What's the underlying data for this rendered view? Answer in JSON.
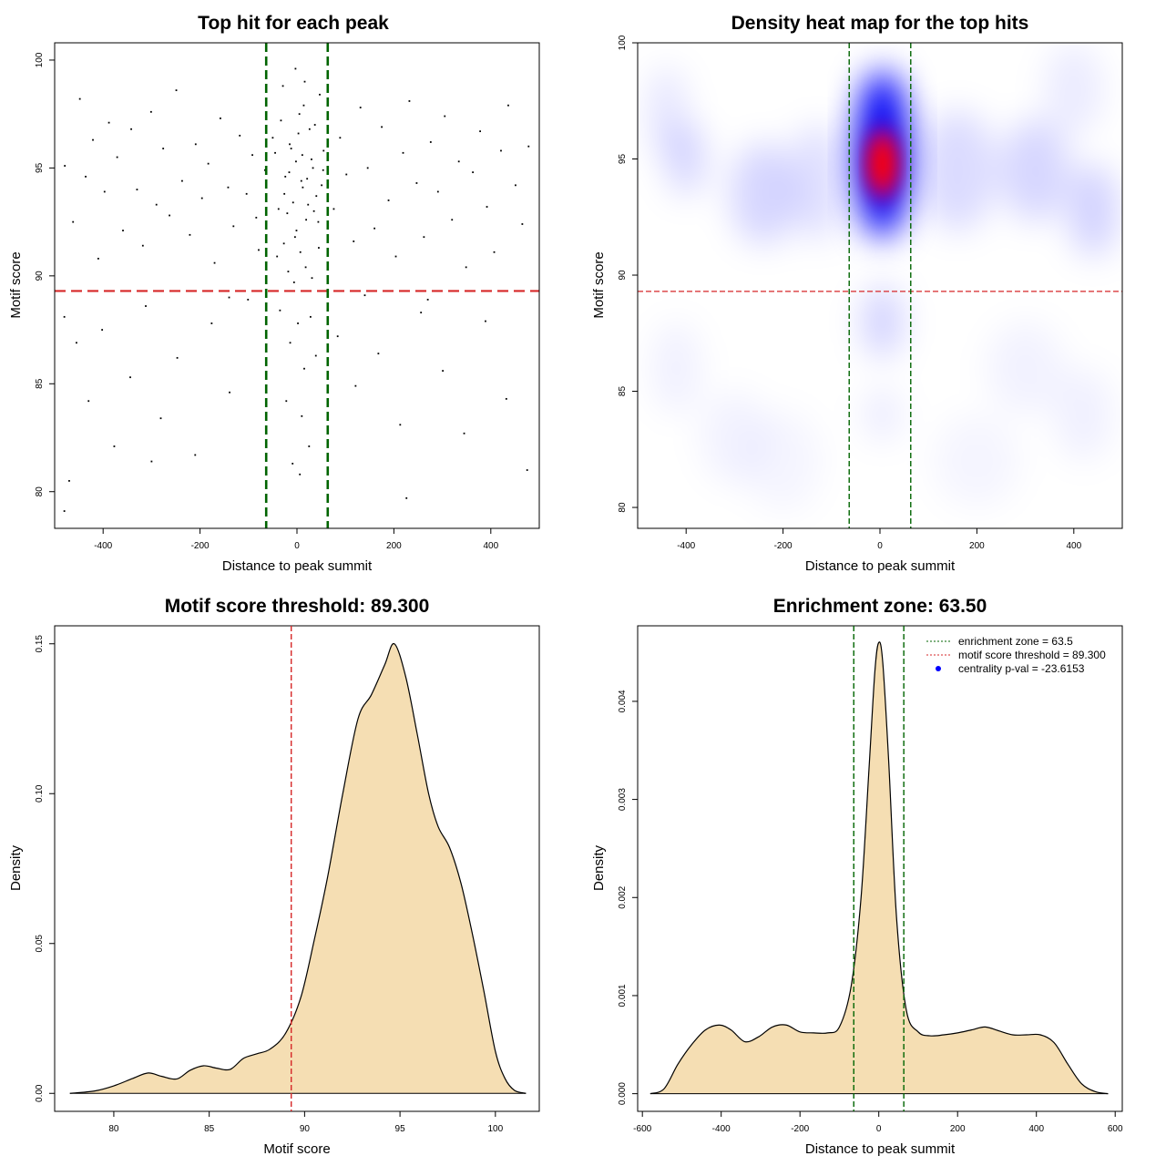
{
  "colors": {
    "threshold_line": "#d62728",
    "zone_line": "#006400",
    "density_fill": "#f5deb3",
    "points": "#000000",
    "heat_low": "#ffffff",
    "heat_mid": "#0000ff",
    "heat_high": "#ff0000"
  },
  "chart_data": [
    {
      "type": "scatter",
      "title": "Top hit for each peak",
      "xlabel": "Distance to peak summit",
      "ylabel": "Motif score",
      "xlim": [
        -500,
        500
      ],
      "ylim": [
        78.3,
        100.8
      ],
      "xticks": [
        -400,
        -200,
        0,
        200,
        400
      ],
      "yticks": [
        80,
        85,
        90,
        95,
        100
      ],
      "grid": false,
      "hlines": [
        89.3
      ],
      "vlines": [
        -63.5,
        63.5
      ],
      "points": [
        [
          -479,
          95.1
        ],
        [
          -462,
          92.5
        ],
        [
          -448,
          98.2
        ],
        [
          -436,
          94.6
        ],
        [
          -421,
          96.3
        ],
        [
          -410,
          90.8
        ],
        [
          -397,
          93.9
        ],
        [
          -388,
          97.1
        ],
        [
          -371,
          95.5
        ],
        [
          -359,
          92.1
        ],
        [
          -342,
          96.8
        ],
        [
          -330,
          94.0
        ],
        [
          -318,
          91.4
        ],
        [
          -301,
          97.6
        ],
        [
          -290,
          93.3
        ],
        [
          -276,
          95.9
        ],
        [
          -263,
          92.8
        ],
        [
          -249,
          98.6
        ],
        [
          -237,
          94.4
        ],
        [
          -221,
          91.9
        ],
        [
          -209,
          96.1
        ],
        [
          -196,
          93.6
        ],
        [
          -183,
          95.2
        ],
        [
          -170,
          90.6
        ],
        [
          -158,
          97.3
        ],
        [
          -142,
          94.1
        ],
        [
          -131,
          92.3
        ],
        [
          -118,
          96.5
        ],
        [
          -104,
          93.8
        ],
        [
          -92,
          95.6
        ],
        [
          -79,
          91.2
        ],
        [
          -66,
          94.9
        ],
        [
          -480,
          88.1
        ],
        [
          -455,
          86.9
        ],
        [
          -430,
          84.2
        ],
        [
          -402,
          87.5
        ],
        [
          -377,
          82.1
        ],
        [
          -344,
          85.3
        ],
        [
          -312,
          88.6
        ],
        [
          -281,
          83.4
        ],
        [
          -247,
          86.2
        ],
        [
          -210,
          81.7
        ],
        [
          -176,
          87.8
        ],
        [
          -139,
          84.6
        ],
        [
          -101,
          88.9
        ],
        [
          -470,
          80.5
        ],
        [
          -300,
          81.4
        ],
        [
          -480,
          79.1
        ],
        [
          -140,
          89.0
        ],
        [
          -84,
          92.7
        ],
        [
          76,
          93.1
        ],
        [
          89,
          96.4
        ],
        [
          102,
          94.7
        ],
        [
          117,
          91.6
        ],
        [
          131,
          97.8
        ],
        [
          146,
          95.0
        ],
        [
          160,
          92.2
        ],
        [
          175,
          96.9
        ],
        [
          189,
          93.5
        ],
        [
          204,
          90.9
        ],
        [
          219,
          95.7
        ],
        [
          232,
          98.1
        ],
        [
          247,
          94.3
        ],
        [
          262,
          91.8
        ],
        [
          276,
          96.2
        ],
        [
          291,
          93.9
        ],
        [
          305,
          97.4
        ],
        [
          320,
          92.6
        ],
        [
          334,
          95.3
        ],
        [
          349,
          90.4
        ],
        [
          363,
          94.8
        ],
        [
          378,
          96.7
        ],
        [
          392,
          93.2
        ],
        [
          407,
          91.1
        ],
        [
          421,
          95.8
        ],
        [
          436,
          97.9
        ],
        [
          451,
          94.2
        ],
        [
          465,
          92.4
        ],
        [
          478,
          96.0
        ],
        [
          84,
          87.2
        ],
        [
          121,
          84.9
        ],
        [
          168,
          86.4
        ],
        [
          213,
          83.1
        ],
        [
          256,
          88.3
        ],
        [
          301,
          85.6
        ],
        [
          345,
          82.7
        ],
        [
          389,
          87.9
        ],
        [
          432,
          84.3
        ],
        [
          475,
          81.0
        ],
        [
          226,
          79.7
        ],
        [
          140,
          89.1
        ],
        [
          270,
          88.9
        ],
        [
          -33,
          97.2
        ],
        [
          -24,
          94.6
        ],
        [
          -15,
          96.1
        ],
        [
          -8,
          93.4
        ],
        [
          -2,
          95.3
        ],
        [
          5,
          97.5
        ],
        [
          12,
          94.1
        ],
        [
          19,
          92.6
        ],
        [
          26,
          96.8
        ],
        [
          33,
          95.0
        ],
        [
          40,
          93.7
        ],
        [
          47,
          98.4
        ],
        [
          54,
          94.9
        ],
        [
          -45,
          95.7
        ],
        [
          -38,
          93.1
        ],
        [
          -29,
          98.8
        ],
        [
          -20,
          92.9
        ],
        [
          -12,
          95.9
        ],
        [
          -4,
          91.8
        ],
        [
          3,
          96.6
        ],
        [
          9,
          94.4
        ],
        [
          16,
          99.0
        ],
        [
          23,
          93.3
        ],
        [
          30,
          95.4
        ],
        [
          37,
          97.0
        ],
        [
          44,
          92.5
        ],
        [
          51,
          94.2
        ],
        [
          -41,
          90.9
        ],
        [
          -27,
          91.5
        ],
        [
          -18,
          90.2
        ],
        [
          -6,
          89.7
        ],
        [
          7,
          91.1
        ],
        [
          18,
          90.4
        ],
        [
          31,
          89.9
        ],
        [
          45,
          91.3
        ],
        [
          -35,
          88.4
        ],
        [
          -14,
          86.9
        ],
        [
          2,
          87.8
        ],
        [
          15,
          85.7
        ],
        [
          28,
          88.1
        ],
        [
          39,
          86.3
        ],
        [
          -22,
          84.2
        ],
        [
          10,
          83.5
        ],
        [
          25,
          82.1
        ],
        [
          -9,
          81.3
        ],
        [
          6,
          80.8
        ],
        [
          -3,
          99.6
        ],
        [
          14,
          97.9
        ],
        [
          -50,
          96.4
        ],
        [
          55,
          95.8
        ],
        [
          -16,
          94.8
        ],
        [
          21,
          94.5
        ],
        [
          -26,
          93.8
        ],
        [
          35,
          93.0
        ],
        [
          -1,
          92.1
        ],
        [
          11,
          95.6
        ]
      ]
    },
    {
      "type": "heatmap",
      "title": "Density heat map for the top hits",
      "xlabel": "Distance to peak summit",
      "ylabel": "Motif score",
      "xlim": [
        -500,
        500
      ],
      "ylim": [
        79.1,
        100.0
      ],
      "xticks": [
        -400,
        -200,
        0,
        200,
        400
      ],
      "yticks": [
        80,
        85,
        90,
        95,
        100
      ],
      "hlines": [
        89.3
      ],
      "vlines": [
        -63.5,
        63.5
      ],
      "color_scale": [
        "white",
        "blue",
        "red"
      ],
      "peak": {
        "x": 5,
        "y": 94.8
      }
    },
    {
      "type": "area",
      "title": "Motif score threshold: 89.300",
      "xlabel": "Motif score",
      "ylabel": "Density",
      "xlim": [
        76.9,
        102.3
      ],
      "ylim": [
        -0.006,
        0.156
      ],
      "xticks": [
        80,
        85,
        90,
        95,
        100
      ],
      "yticks": [
        0.0,
        0.05,
        0.1,
        0.15
      ],
      "ytick_labels": [
        "0.00",
        "0.05",
        "0.10",
        "0.15"
      ],
      "vlines": [
        89.3
      ],
      "x": [
        77.7,
        79.0,
        80.0,
        81.0,
        81.8,
        82.5,
        83.3,
        84.0,
        84.7,
        85.4,
        86.1,
        86.8,
        87.5,
        88.2,
        89.0,
        89.8,
        90.5,
        91.2,
        92.0,
        92.8,
        93.5,
        94.2,
        94.7,
        95.3,
        95.9,
        96.5,
        97.0,
        97.6,
        98.2,
        98.8,
        99.4,
        100.0,
        100.5,
        101.0,
        101.6
      ],
      "y": [
        0.0,
        0.0008,
        0.0025,
        0.005,
        0.0068,
        0.0057,
        0.0048,
        0.0077,
        0.0092,
        0.0084,
        0.008,
        0.0117,
        0.0132,
        0.0148,
        0.02,
        0.032,
        0.051,
        0.072,
        0.1,
        0.125,
        0.133,
        0.143,
        0.15,
        0.139,
        0.12,
        0.1,
        0.089,
        0.082,
        0.07,
        0.053,
        0.034,
        0.014,
        0.005,
        0.001,
        0.0
      ]
    },
    {
      "type": "area",
      "title": "Enrichment zone: 63.50",
      "xlabel": "Distance to peak summit",
      "ylabel": "Density",
      "xlim": [
        -612,
        618
      ],
      "ylim": [
        -0.00018,
        0.00477
      ],
      "xticks": [
        -600,
        -400,
        -200,
        0,
        200,
        400,
        600
      ],
      "yticks": [
        0.0,
        0.001,
        0.002,
        0.003,
        0.004
      ],
      "ytick_labels": [
        "0.000",
        "0.001",
        "0.002",
        "0.003",
        "0.004"
      ],
      "vlines": [
        -63.5,
        63.5
      ],
      "legend_position": "top-right",
      "legend": [
        {
          "label": "enrichment zone = 63.5",
          "style": "line",
          "color": "#006400"
        },
        {
          "label": "motif score threshold = 89.300",
          "style": "line",
          "color": "#d62728"
        },
        {
          "label": "centrality p-val = -23.6153",
          "style": "point",
          "color": "#0000ff"
        }
      ],
      "x": [
        -580,
        -545,
        -510,
        -475,
        -440,
        -405,
        -375,
        -340,
        -305,
        -270,
        -235,
        -200,
        -165,
        -130,
        -100,
        -70,
        -45,
        -25,
        -10,
        0,
        10,
        25,
        45,
        70,
        100,
        130,
        165,
        200,
        235,
        270,
        305,
        340,
        375,
        410,
        445,
        480,
        515,
        550,
        582
      ],
      "y": [
        0.0,
        5e-05,
        0.0003,
        0.0005,
        0.00065,
        0.0007,
        0.00065,
        0.00053,
        0.00058,
        0.00068,
        0.0007,
        0.00063,
        0.00062,
        0.00062,
        0.00068,
        0.0011,
        0.002,
        0.0033,
        0.0043,
        0.0046,
        0.0044,
        0.0034,
        0.0018,
        0.00085,
        0.00063,
        0.00059,
        0.0006,
        0.00062,
        0.00065,
        0.00068,
        0.00064,
        0.0006,
        0.0006,
        0.0006,
        0.00052,
        0.0003,
        0.0001,
        2e-05,
        0.0
      ]
    }
  ]
}
